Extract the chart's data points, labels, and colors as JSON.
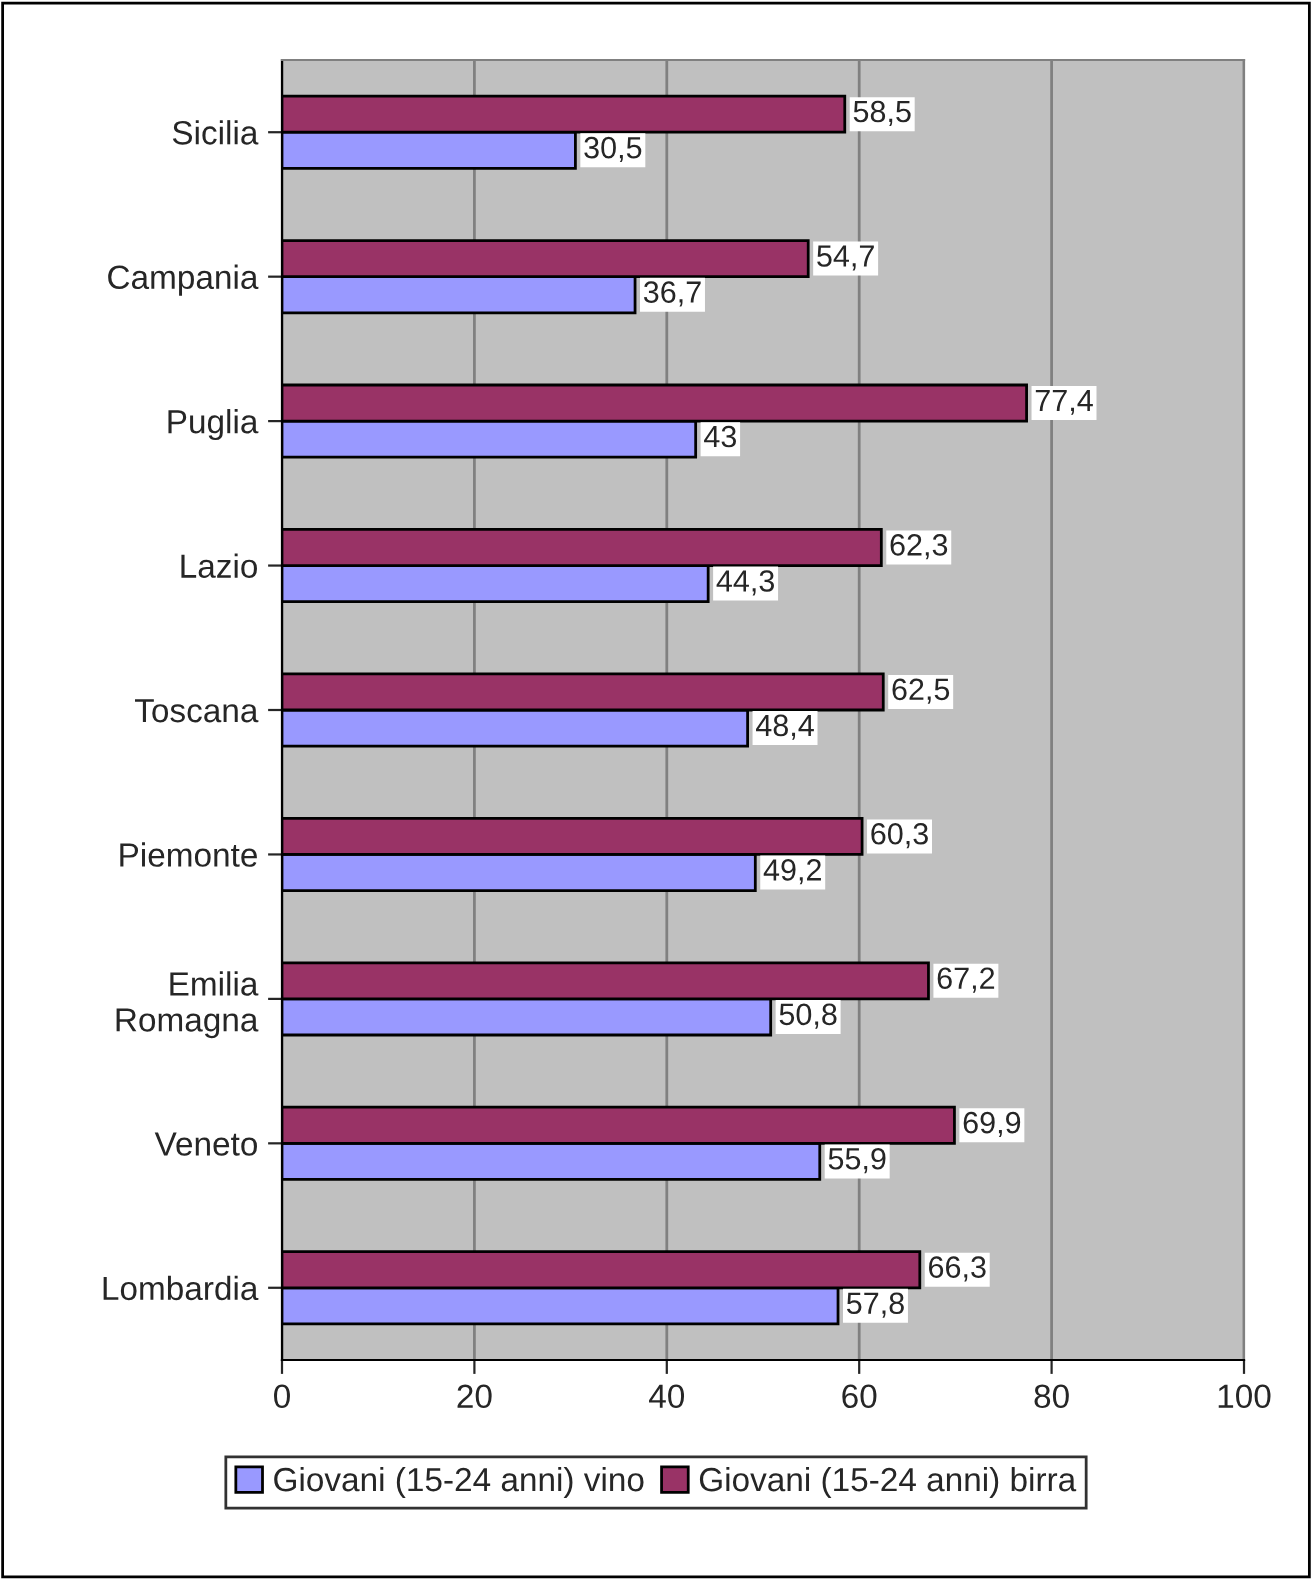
{
  "chart_data": {
    "type": "bar",
    "orientation": "horizontal",
    "categories": [
      "Sicilia",
      "Campania",
      "Puglia",
      "Lazio",
      "Toscana",
      "Piemonte",
      "Emilia\nRomagna",
      "Veneto",
      "Lombardia"
    ],
    "series": [
      {
        "name": "Giovani (15-24 anni) vino",
        "color": "#9999ff",
        "values": [
          30.5,
          36.7,
          43,
          44.3,
          48.4,
          49.2,
          50.8,
          55.9,
          57.8
        ],
        "value_labels": [
          "30,5",
          "36,7",
          "43",
          "44,3",
          "48,4",
          "49,2",
          "50,8",
          "55,9",
          "57,8"
        ]
      },
      {
        "name": "Giovani (15-24 anni) birra",
        "color": "#993366",
        "values": [
          58.5,
          54.7,
          77.4,
          62.3,
          62.5,
          60.3,
          67.2,
          69.9,
          66.3
        ],
        "value_labels": [
          "58,5",
          "54,7",
          "77,4",
          "62,3",
          "62,5",
          "60,3",
          "67,2",
          "69,9",
          "66,3"
        ]
      }
    ],
    "xlim": [
      0,
      100
    ],
    "xticks": [
      0,
      20,
      40,
      60,
      80,
      100
    ],
    "grid": "x",
    "legend": "bottom"
  }
}
